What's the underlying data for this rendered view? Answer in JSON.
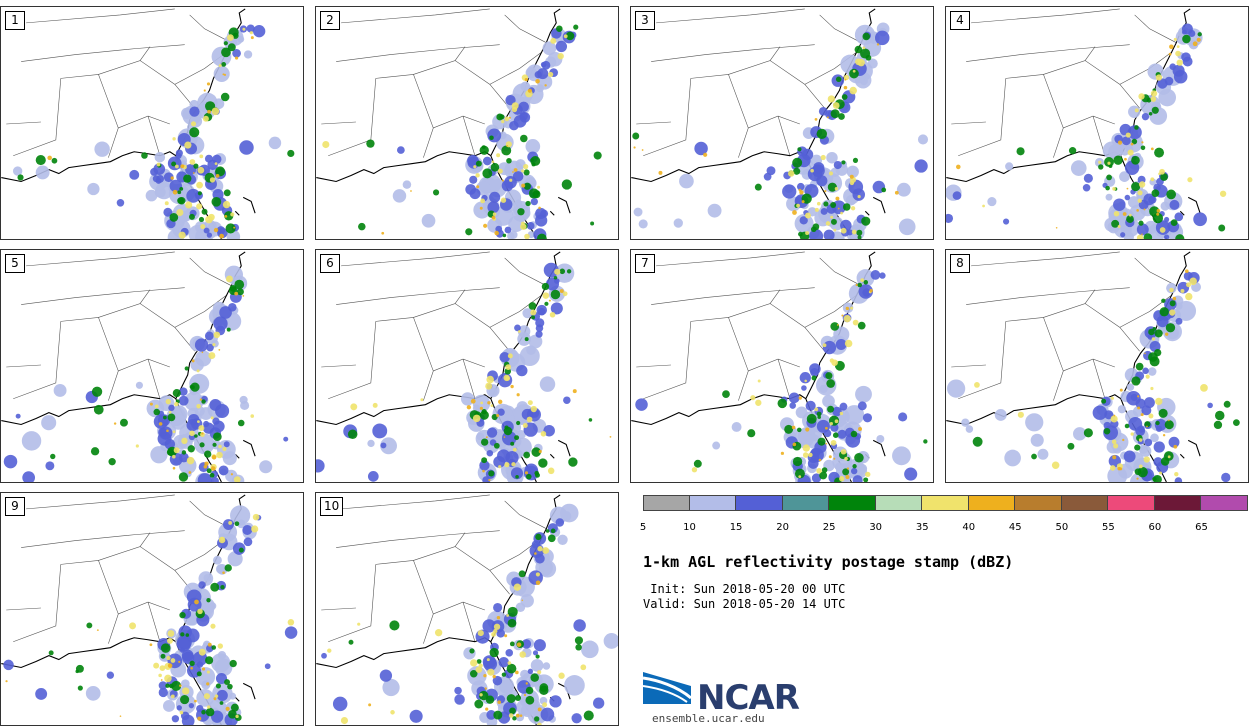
{
  "panels": [
    {
      "label": "1"
    },
    {
      "label": "2"
    },
    {
      "label": "3"
    },
    {
      "label": "4"
    },
    {
      "label": "5"
    },
    {
      "label": "6"
    },
    {
      "label": "7"
    },
    {
      "label": "8"
    },
    {
      "label": "9"
    },
    {
      "label": "10"
    }
  ],
  "colorbar": {
    "ticks": [
      "5",
      "10",
      "15",
      "20",
      "25",
      "30",
      "35",
      "40",
      "45",
      "50",
      "55",
      "60",
      "65"
    ],
    "colors": [
      "#a6a6a6",
      "#b3bde8",
      "#5460d6",
      "#4f9598",
      "#00840b",
      "#b7ddb8",
      "#f0e36c",
      "#eeb01e",
      "#b87d2d",
      "#8a5a3a",
      "#ed4a7a",
      "#6c1837",
      "#b14bad"
    ]
  },
  "title": "1-km AGL reflectivity postage stamp (dBZ)",
  "init": " Init: Sun 2018-05-20 00 UTC",
  "valid": "Valid: Sun 2018-05-20 14 UTC",
  "logo": {
    "name": "NCAR",
    "url": "ensemble.ucar.edu"
  }
}
